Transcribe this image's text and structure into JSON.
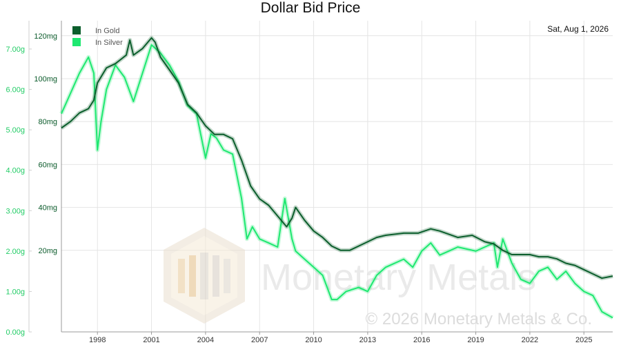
{
  "chart_data": {
    "type": "line",
    "title": "Dollar Bid Price",
    "date_label": "Sat, Aug 1, 2026",
    "watermark": "Monetary Metals",
    "copyright": "© 2026 Monetary Metals & Co.",
    "x_range": [
      1996.0,
      2026.6
    ],
    "x_ticks": [
      "1998",
      "2001",
      "2004",
      "2007",
      "2010",
      "2013",
      "2016",
      "2019",
      "2022",
      "2025"
    ],
    "left_axis": {
      "unit": "g",
      "range": [
        0,
        7.7
      ],
      "ticks": [
        "0.00g",
        "1.00g",
        "2.00g",
        "3.00g",
        "4.00g",
        "5.00g",
        "6.00g",
        "7.00g"
      ]
    },
    "right_axis": {
      "unit": "mg",
      "range": [
        -18,
        127
      ],
      "ticks": [
        "20mg",
        "40mg",
        "60mg",
        "80mg",
        "100mg",
        "120mg"
      ]
    },
    "legend": {
      "placement": "top-left",
      "entries": [
        "In Gold",
        "In Silver"
      ]
    },
    "grid": true,
    "colors": {
      "gold": "#0b5e2c",
      "silver": "#1ee870"
    },
    "series": [
      {
        "name": "In Gold",
        "axis": "right",
        "x": [
          1996.0,
          1996.5,
          1997.0,
          1997.5,
          1997.8,
          1998.0,
          1998.5,
          1999.0,
          1999.3,
          1999.6,
          1999.8,
          2000.0,
          2000.5,
          2001.0,
          2001.2,
          2001.5,
          2002.0,
          2002.5,
          2003.0,
          2003.5,
          2004.0,
          2004.5,
          2005.0,
          2005.5,
          2006.0,
          2006.5,
          2007.0,
          2007.5,
          2008.0,
          2008.5,
          2008.8,
          2009.0,
          2009.5,
          2010.0,
          2010.5,
          2011.0,
          2011.5,
          2012.0,
          2012.5,
          2013.0,
          2013.5,
          2014.0,
          2015.0,
          2015.8,
          2016.5,
          2017.0,
          2018.0,
          2018.8,
          2019.5,
          2020.0,
          2020.5,
          2021.0,
          2021.5,
          2022.0,
          2022.5,
          2023.0,
          2023.5,
          2024.0,
          2024.5,
          2025.0,
          2025.5,
          2026.0,
          2026.6
        ],
        "y": [
          77,
          80,
          84,
          86,
          90,
          98,
          105,
          107,
          109,
          111,
          118,
          111,
          114,
          119,
          117,
          110,
          104,
          98,
          88,
          84,
          78,
          74,
          74,
          72,
          62,
          50,
          44,
          41,
          36,
          31,
          35,
          40,
          34,
          29,
          26,
          22,
          20,
          20,
          22,
          24,
          26,
          27,
          28,
          28,
          30,
          29,
          26,
          27,
          24,
          23,
          20,
          18,
          18,
          18,
          17,
          17,
          16,
          14,
          13,
          11,
          9,
          7,
          8
        ]
      },
      {
        "name": "In Silver",
        "axis": "left",
        "x": [
          1996.0,
          1996.5,
          1997.0,
          1997.5,
          1997.8,
          1998.0,
          1998.2,
          1998.5,
          1999.0,
          1999.5,
          2000.0,
          2000.5,
          2001.0,
          2001.5,
          2002.0,
          2002.5,
          2003.0,
          2003.5,
          2004.0,
          2004.3,
          2004.6,
          2005.0,
          2005.5,
          2006.0,
          2006.3,
          2006.6,
          2007.0,
          2007.5,
          2008.0,
          2008.4,
          2008.8,
          2009.0,
          2009.5,
          2010.0,
          2010.5,
          2011.0,
          2011.3,
          2011.8,
          2012.5,
          2013.0,
          2013.5,
          2014.0,
          2015.0,
          2015.5,
          2016.0,
          2016.5,
          2017.0,
          2017.5,
          2018.0,
          2019.0,
          2019.5,
          2020.0,
          2020.2,
          2020.5,
          2021.0,
          2021.5,
          2022.0,
          2022.5,
          2023.0,
          2023.5,
          2024.0,
          2024.5,
          2025.0,
          2025.5,
          2026.0,
          2026.6
        ],
        "y": [
          5.4,
          5.9,
          6.4,
          6.8,
          6.4,
          4.5,
          5.2,
          6.0,
          6.6,
          6.3,
          5.7,
          6.4,
          7.1,
          6.9,
          6.6,
          6.2,
          5.6,
          5.4,
          4.3,
          4.9,
          4.8,
          4.5,
          4.4,
          3.3,
          2.3,
          2.6,
          2.3,
          2.2,
          2.1,
          3.3,
          2.3,
          2.0,
          1.8,
          1.6,
          1.4,
          0.8,
          0.8,
          1.0,
          1.1,
          1.0,
          1.4,
          1.6,
          1.8,
          1.6,
          2.0,
          2.2,
          1.9,
          2.0,
          2.1,
          2.0,
          2.1,
          2.2,
          1.6,
          2.3,
          1.7,
          1.3,
          1.2,
          1.5,
          1.6,
          1.3,
          1.5,
          1.2,
          1.0,
          0.9,
          0.5,
          0.35
        ]
      }
    ]
  }
}
